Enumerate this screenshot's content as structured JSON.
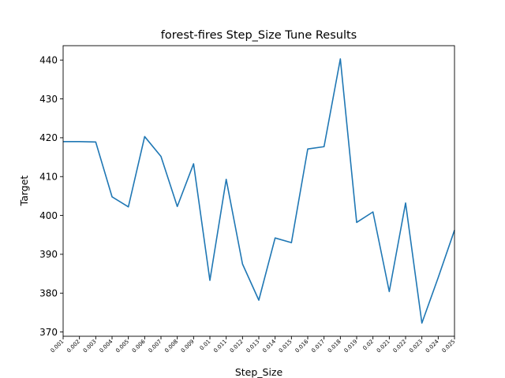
{
  "chart_data": {
    "type": "line",
    "title": "forest-fires Step_Size Tune Results",
    "xlabel": "Step_Size",
    "ylabel": "Target",
    "categories": [
      "0.001",
      "0.002",
      "0.003",
      "0.004",
      "0.005",
      "0.006",
      "0.007",
      "0.008",
      "0.009",
      "0.01",
      "0.011",
      "0.012",
      "0.013",
      "0.014",
      "0.015",
      "0.016",
      "0.017",
      "0.018",
      "0.019",
      "0.02",
      "0.021",
      "0.022",
      "0.023",
      "0.024",
      "0.025"
    ],
    "series": [
      {
        "values": [
          419.0,
          419.0,
          418.9,
          404.8,
          402.2,
          420.3,
          415.2,
          402.3,
          413.3,
          383.3,
          409.3,
          387.5,
          378.2,
          394.2,
          393.0,
          417.1,
          417.7,
          440.3,
          398.2,
          400.9,
          380.4,
          403.2,
          372.3,
          384.0,
          396.2
        ]
      }
    ],
    "y_ticks": [
      370,
      380,
      390,
      400,
      410,
      420,
      430,
      440
    ],
    "ylim": [
      368.9,
      443.7
    ],
    "grid": false,
    "legend": false,
    "line_color": "#1f77b4"
  }
}
